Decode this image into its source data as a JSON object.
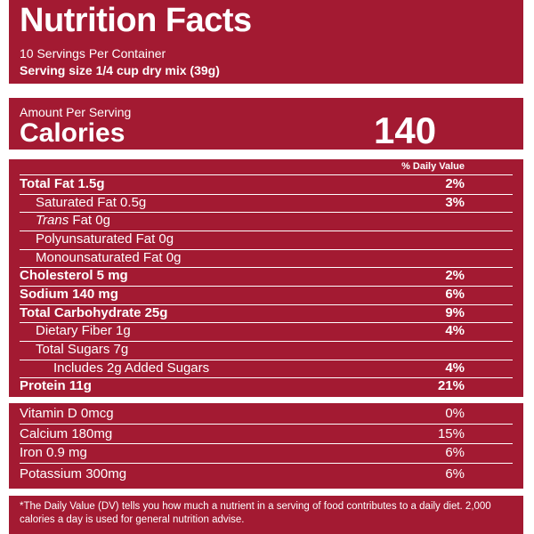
{
  "label": {
    "title": "Nutrition Facts",
    "servings_per_container": "10 Servings Per Container",
    "serving_size": "Serving size 1/4 cup dry mix (39g)",
    "amount_per_serving": "Amount Per Serving",
    "calories_label": "Calories",
    "calories_value": "140",
    "daily_value_header": "% Daily Value"
  },
  "nutrients": [
    {
      "name": "Total Fat 1.5g",
      "dv": "2%",
      "bold": true,
      "indent": 0
    },
    {
      "name": "Saturated Fat 0.5g",
      "dv": "3%",
      "bold": false,
      "indent": 1
    },
    {
      "name_italic": "Trans",
      "name": " Fat 0g",
      "dv": "",
      "bold": false,
      "indent": 1
    },
    {
      "name": "Polyunsaturated Fat 0g",
      "dv": "",
      "bold": false,
      "indent": 1
    },
    {
      "name": "Monounsaturated Fat 0g",
      "dv": "",
      "bold": false,
      "indent": 1
    },
    {
      "name": "Cholesterol 5 mg",
      "dv": "2%",
      "bold": true,
      "indent": 0
    },
    {
      "name": "Sodium 140 mg",
      "dv": "6%",
      "bold": true,
      "indent": 0
    },
    {
      "name": "Total Carbohydrate 25g",
      "dv": "9%",
      "bold": true,
      "indent": 0
    },
    {
      "name": "Dietary Fiber 1g",
      "dv": "4%",
      "bold": false,
      "indent": 1
    },
    {
      "name": "Total Sugars 7g",
      "dv": "",
      "bold": false,
      "indent": 1
    },
    {
      "name": "Includes 2g Added Sugars",
      "dv": "4%",
      "bold": false,
      "indent": 2
    },
    {
      "name": "Protein 11g",
      "dv": "21%",
      "bold": true,
      "indent": 0
    }
  ],
  "vitamins": [
    {
      "name": "Vitamin D 0mcg",
      "dv": "0%"
    },
    {
      "name": "Calcium 180mg",
      "dv": "15%"
    },
    {
      "name": "Iron 0.9 mg",
      "dv": "6%"
    },
    {
      "name": "Potassium 300mg",
      "dv": "6%"
    }
  ],
  "footnote": "*The Daily Value (DV) tells you how much a nutrient in a serving of food contributes to a daily diet. 2,000 calories a day is used for general nutrition advise."
}
